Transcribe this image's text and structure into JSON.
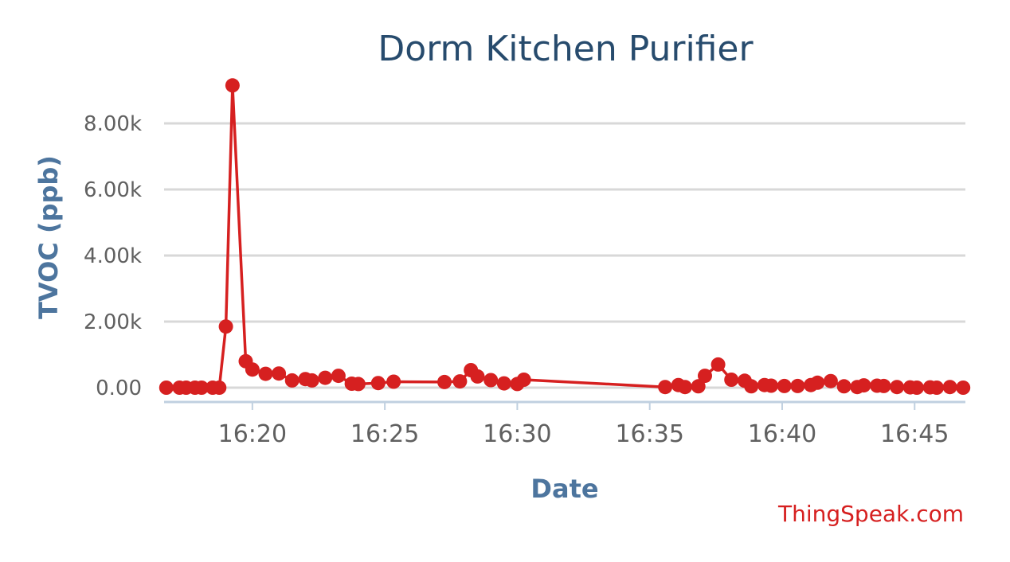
{
  "chart_data": {
    "type": "line",
    "title": "Dorm Kitchen Purifier",
    "xlabel": "Date",
    "ylabel": "TVOC (ppb)",
    "ylim": [
      0,
      9500
    ],
    "y_ticks": [
      "0.00",
      "2.00k",
      "4.00k",
      "6.00k",
      "8.00k"
    ],
    "y_tick_values": [
      0,
      2000,
      4000,
      6000,
      8000
    ],
    "x_ticks": [
      "16:20",
      "16:25",
      "16:30",
      "16:35",
      "16:40",
      "16:45"
    ],
    "xlim": [
      "16:16:40",
      "16:46:55"
    ],
    "grid": true,
    "credit": "ThingSpeak.com",
    "series": [
      {
        "color": "#d62020",
        "x": [
          "16:16:45",
          "16:17:15",
          "16:17:30",
          "16:17:50",
          "16:18:05",
          "16:18:30",
          "16:18:45",
          "16:19:00",
          "16:19:15",
          "16:19:45",
          "16:20:00",
          "16:20:30",
          "16:21:00",
          "16:21:30",
          "16:22:00",
          "16:22:15",
          "16:22:45",
          "16:23:15",
          "16:23:45",
          "16:24:00",
          "16:24:45",
          "16:25:20",
          "16:27:15",
          "16:27:50",
          "16:28:15",
          "16:28:30",
          "16:29:00",
          "16:29:30",
          "16:30:00",
          "16:30:15",
          "16:35:35",
          "16:36:05",
          "16:36:20",
          "16:36:50",
          "16:37:05",
          "16:37:35",
          "16:38:05",
          "16:38:35",
          "16:38:50",
          "16:39:20",
          "16:39:35",
          "16:40:05",
          "16:40:35",
          "16:41:05",
          "16:41:20",
          "16:41:50",
          "16:42:20",
          "16:42:50",
          "16:43:05",
          "16:43:35",
          "16:43:50",
          "16:44:20",
          "16:44:50",
          "16:45:05",
          "16:45:35",
          "16:45:50",
          "16:46:20",
          "16:46:50"
        ],
        "y": [
          0,
          0,
          0,
          0,
          0,
          0,
          0,
          1850,
          9150,
          800,
          550,
          420,
          430,
          220,
          260,
          220,
          300,
          360,
          120,
          110,
          140,
          180,
          170,
          190,
          530,
          340,
          230,
          130,
          110,
          240,
          20,
          80,
          20,
          40,
          360,
          700,
          240,
          210,
          40,
          80,
          60,
          50,
          50,
          80,
          150,
          200,
          40,
          20,
          70,
          60,
          50,
          20,
          10,
          0,
          10,
          0,
          20,
          0
        ]
      }
    ]
  }
}
